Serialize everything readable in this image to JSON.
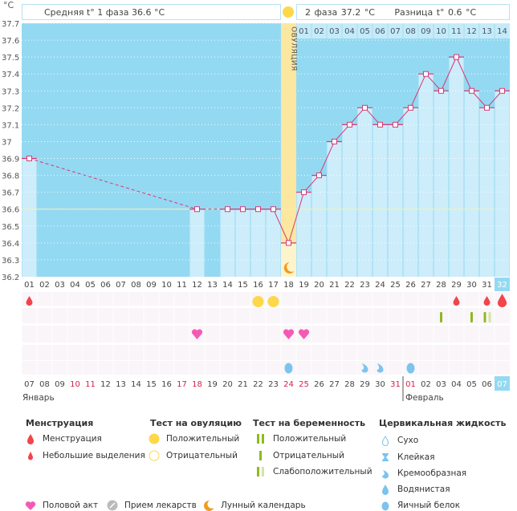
{
  "unit": "°C",
  "header": {
    "phase1": "Средняя t° 1 фаза 36.6 °C",
    "phase2": "2 фаза 37.2 °C",
    "difference": "Разница t° 0.6 °C",
    "ovulation_label": "ОВУЛЯЦИЯ"
  },
  "y_ticks": [
    "37.7",
    "37.6",
    "37.5",
    "37.4",
    "37.3",
    "37.2",
    "37.1",
    "37",
    "36.9",
    "36.8",
    "36.7",
    "36.6",
    "36.5",
    "36.4",
    "36.3",
    "36.2"
  ],
  "cycle_days": [
    "01",
    "02",
    "03",
    "04",
    "05",
    "06",
    "07",
    "08",
    "09",
    "10",
    "11",
    "12",
    "13",
    "14",
    "15",
    "16",
    "17",
    "18",
    "19",
    "20",
    "21",
    "22",
    "23",
    "24",
    "25",
    "26",
    "27",
    "28",
    "29",
    "30",
    "31",
    "32"
  ],
  "luteal_days": [
    "01",
    "02",
    "03",
    "04",
    "05",
    "06",
    "07",
    "08",
    "09",
    "10",
    "11",
    "12",
    "13",
    "14"
  ],
  "temperatures": [
    36.9,
    null,
    null,
    null,
    null,
    null,
    null,
    null,
    null,
    null,
    null,
    36.6,
    null,
    36.6,
    36.6,
    36.6,
    36.6,
    36.4,
    36.7,
    36.8,
    37.0,
    37.1,
    37.2,
    37.1,
    37.1,
    37.2,
    37.4,
    37.3,
    37.5,
    37.3,
    37.2,
    37.3
  ],
  "coverline": 36.6,
  "ovulation_day": 18,
  "moon_day": 18,
  "calendar_dates": [
    "07",
    "08",
    "09",
    "10",
    "11",
    "12",
    "13",
    "14",
    "15",
    "16",
    "17",
    "18",
    "19",
    "20",
    "21",
    "22",
    "23",
    "24",
    "25",
    "26",
    "27",
    "28",
    "29",
    "30",
    "31",
    "01",
    "02",
    "03",
    "04",
    "05",
    "06",
    "07"
  ],
  "weekend_indices": [
    3,
    4,
    10,
    11,
    17,
    18,
    24,
    25
  ],
  "months": {
    "jan": "Январь",
    "feb": "Февраль"
  },
  "events": {
    "menstruation": [
      {
        "day": 1,
        "type": "small"
      },
      {
        "day": 29,
        "type": "small"
      },
      {
        "day": 31,
        "type": "small"
      },
      {
        "day": 32,
        "type": "full"
      }
    ],
    "ovulation_test": [
      {
        "day": 16,
        "type": "positive"
      },
      {
        "day": 17,
        "type": "positive"
      }
    ],
    "pregnancy_test": [
      {
        "day": 28,
        "type": "negative"
      },
      {
        "day": 30,
        "type": "negative"
      },
      {
        "day": 31,
        "type": "weak"
      }
    ],
    "intercourse": [
      12,
      18,
      19
    ],
    "cervical": [
      {
        "day": 18,
        "type": "eggwhite"
      },
      {
        "day": 23,
        "type": "creamy"
      },
      {
        "day": 24,
        "type": "creamy"
      },
      {
        "day": 26,
        "type": "eggwhite"
      }
    ]
  },
  "legend": {
    "menstruation": {
      "title": "Менструация",
      "items": [
        "Менструация",
        "Небольшие выделения"
      ]
    },
    "ovulation_test": {
      "title": "Тест на овуляцию",
      "items": [
        "Положительный",
        "Отрицательный"
      ]
    },
    "pregnancy_test": {
      "title": "Тест на беременность",
      "items": [
        "Положительный",
        "Отрицательный",
        "Слабоположительный"
      ]
    },
    "cervical": {
      "title": "Цервикальная жидкость",
      "items": [
        "Сухо",
        "Клейкая",
        "Кремообразная",
        "Водянистая",
        "Яичный белок"
      ]
    },
    "other": [
      "Половой акт",
      "Прием лекарств",
      "Лунный календарь"
    ]
  },
  "colors": {
    "bg": "#94d9f2",
    "bar": "#cdedfb",
    "line": "#d63a75",
    "ovulation": "#fbe7a0",
    "menstruation": "#f2444a",
    "ovulation_test": "#fcd84a",
    "pregnancy_test": "#8fba1e",
    "heart": "#f45ab4",
    "cervical": "#7cc3ee",
    "weekend": "#d61e4b"
  }
}
